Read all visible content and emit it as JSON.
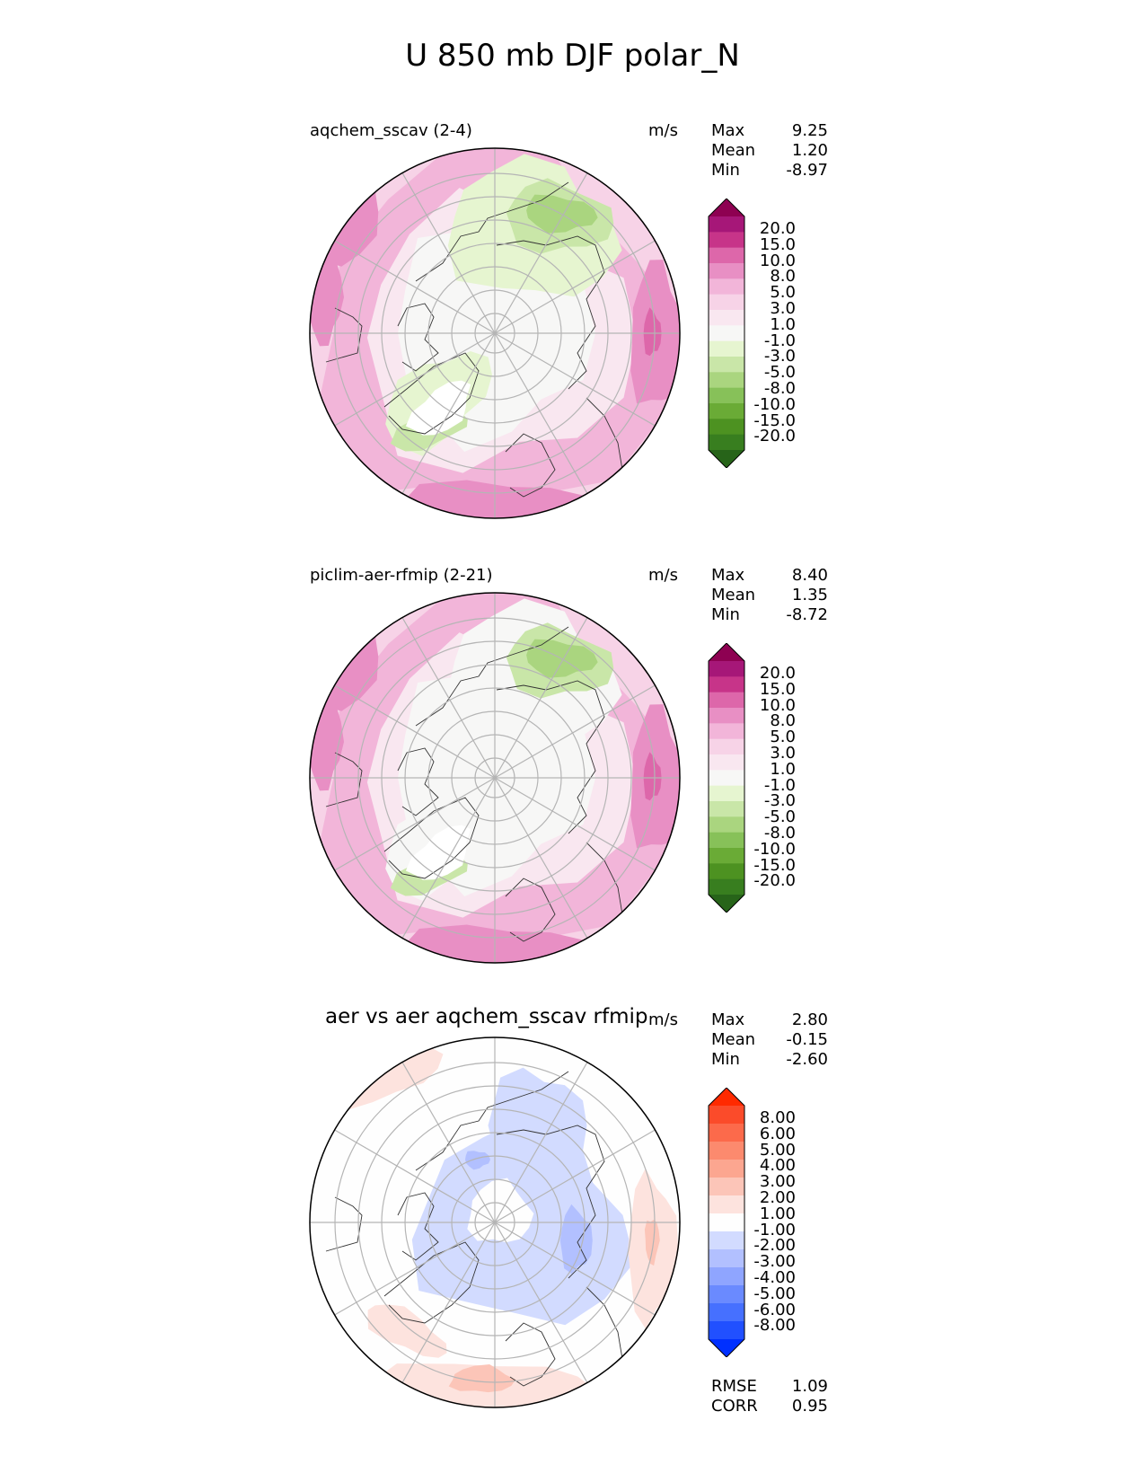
{
  "figure_title": "U 850 mb DJF polar_N",
  "chart_data": [
    {
      "type": "heatmap",
      "projection": "north polar stereographic",
      "title": "aqchem_sscav (2-4)",
      "units": "m/s",
      "stats": {
        "max": "9.25",
        "mean": "1.20",
        "min": "-8.97"
      },
      "colorbar_levels": [
        "20.0",
        "15.0",
        "10.0",
        "8.0",
        "5.0",
        "3.0",
        "1.0",
        "-1.0",
        "-3.0",
        "-5.0",
        "-8.0",
        "-10.0",
        "-15.0",
        "-20.0"
      ],
      "colormap": "PiYG"
    },
    {
      "type": "heatmap",
      "projection": "north polar stereographic",
      "title": "piclim-aer-rfmip (2-21)",
      "units": "m/s",
      "stats": {
        "max": "8.40",
        "mean": "1.35",
        "min": "-8.72"
      },
      "colorbar_levels": [
        "20.0",
        "15.0",
        "10.0",
        "8.0",
        "5.0",
        "3.0",
        "1.0",
        "-1.0",
        "-3.0",
        "-5.0",
        "-8.0",
        "-10.0",
        "-15.0",
        "-20.0"
      ],
      "colormap": "PiYG"
    },
    {
      "type": "heatmap",
      "projection": "north polar stereographic",
      "title": "aer vs aer aqchem_sscav rfmip",
      "units": "m/s",
      "stats": {
        "max": "2.80",
        "mean": "-0.15",
        "min": "-2.60"
      },
      "colorbar_levels": [
        "8.00",
        "6.00",
        "5.00",
        "4.00",
        "3.00",
        "2.00",
        "1.00",
        "-1.00",
        "-2.00",
        "-3.00",
        "-4.00",
        "-5.00",
        "-6.00",
        "-8.00"
      ],
      "colormap": "bwr",
      "rmse": "1.09",
      "corr": "0.95"
    }
  ],
  "labels": {
    "max": "Max",
    "mean": "Mean",
    "min": "Min",
    "rmse": "RMSE",
    "corr": "CORR"
  },
  "colors": {
    "piyg": [
      "#276419",
      "#387e1f",
      "#4d9221",
      "#6aab36",
      "#87c159",
      "#aad57f",
      "#c9e6a8",
      "#e6f5d0",
      "#f7f7f6",
      "#f9e7f0",
      "#f7d3e7",
      "#f2b5d9",
      "#e88fc4",
      "#dd67aa",
      "#c73489",
      "#a61778",
      "#8e0152"
    ],
    "bwr": [
      "#0030ff",
      "#2150ff",
      "#4670ff",
      "#6a8aff",
      "#8fa5ff",
      "#b2c0ff",
      "#d2dbff",
      "#fefefe",
      "#fde3de",
      "#fcc5b8",
      "#fca690",
      "#fc8a6e",
      "#fc6a4b",
      "#fb4b2a",
      "#ff2a00"
    ]
  }
}
